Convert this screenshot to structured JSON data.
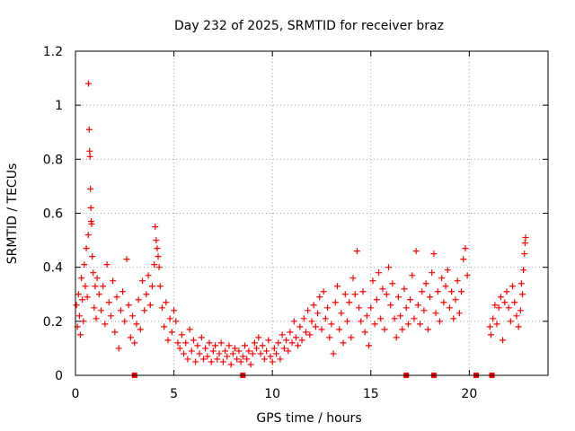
{
  "chart_data": {
    "type": "scatter",
    "title": "Day 232 of 2025, SRMTID for receiver braz",
    "xlabel": "GPS time / hours",
    "ylabel": "SRMTID / TECUs",
    "xlim": [
      0,
      24
    ],
    "ylim": [
      0,
      1.2
    ],
    "x_ticks": [
      0,
      5,
      10,
      15,
      20
    ],
    "x_tick_labels": [
      "0",
      "5",
      "10",
      "15",
      "20"
    ],
    "y_ticks": [
      0,
      0.2,
      0.4,
      0.6,
      0.8,
      1.0,
      1.2
    ],
    "y_tick_labels": [
      "0",
      "0.2",
      "0.4",
      "0.6",
      "0.8",
      "1",
      "1.2"
    ],
    "grid": true,
    "marker": "plus",
    "color": "#ff0000",
    "series": [
      {
        "name": "SRMTID",
        "points": [
          [
            0.05,
            0.26
          ],
          [
            0.1,
            0.18
          ],
          [
            0.15,
            0.3
          ],
          [
            0.2,
            0.22
          ],
          [
            0.25,
            0.15
          ],
          [
            0.3,
            0.36
          ],
          [
            0.35,
            0.28
          ],
          [
            0.4,
            0.2
          ],
          [
            0.45,
            0.41
          ],
          [
            0.5,
            0.33
          ],
          [
            0.55,
            0.47
          ],
          [
            0.6,
            0.29
          ],
          [
            0.65,
            0.52
          ],
          [
            0.66,
            1.08
          ],
          [
            0.7,
            0.91
          ],
          [
            0.72,
            0.83
          ],
          [
            0.74,
            0.81
          ],
          [
            0.76,
            0.69
          ],
          [
            0.78,
            0.62
          ],
          [
            0.8,
            0.57
          ],
          [
            0.82,
            0.56
          ],
          [
            0.85,
            0.44
          ],
          [
            0.9,
            0.38
          ],
          [
            0.95,
            0.25
          ],
          [
            1.0,
            0.33
          ],
          [
            1.05,
            0.21
          ],
          [
            1.1,
            0.36
          ],
          [
            1.2,
            0.3
          ],
          [
            1.3,
            0.24
          ],
          [
            1.4,
            0.33
          ],
          [
            1.5,
            0.19
          ],
          [
            1.6,
            0.41
          ],
          [
            1.7,
            0.27
          ],
          [
            1.8,
            0.22
          ],
          [
            1.9,
            0.35
          ],
          [
            2.0,
            0.16
          ],
          [
            2.1,
            0.29
          ],
          [
            2.2,
            0.1
          ],
          [
            2.3,
            0.24
          ],
          [
            2.4,
            0.31
          ],
          [
            2.5,
            0.2
          ],
          [
            2.6,
            0.43
          ],
          [
            2.7,
            0.26
          ],
          [
            2.8,
            0.14
          ],
          [
            2.9,
            0.22
          ],
          [
            3.0,
            0.12
          ],
          [
            3.1,
            0.19
          ],
          [
            3.2,
            0.28
          ],
          [
            3.3,
            0.17
          ],
          [
            3.4,
            0.35
          ],
          [
            3.5,
            0.24
          ],
          [
            3.6,
            0.3
          ],
          [
            3.7,
            0.37
          ],
          [
            3.8,
            0.26
          ],
          [
            3.9,
            0.33
          ],
          [
            4.0,
            0.41
          ],
          [
            4.05,
            0.55
          ],
          [
            4.1,
            0.5
          ],
          [
            4.15,
            0.47
          ],
          [
            4.2,
            0.44
          ],
          [
            4.25,
            0.4
          ],
          [
            4.3,
            0.33
          ],
          [
            4.4,
            0.25
          ],
          [
            4.5,
            0.18
          ],
          [
            4.6,
            0.27
          ],
          [
            4.7,
            0.13
          ],
          [
            4.8,
            0.21
          ],
          [
            4.9,
            0.16
          ],
          [
            5.0,
            0.24
          ],
          [
            5.1,
            0.2
          ],
          [
            5.2,
            0.12
          ],
          [
            5.3,
            0.1
          ],
          [
            5.4,
            0.15
          ],
          [
            5.5,
            0.08
          ],
          [
            5.6,
            0.12
          ],
          [
            5.7,
            0.06
          ],
          [
            5.8,
            0.17
          ],
          [
            5.9,
            0.09
          ],
          [
            6.0,
            0.13
          ],
          [
            6.1,
            0.05
          ],
          [
            6.2,
            0.11
          ],
          [
            6.3,
            0.08
          ],
          [
            6.4,
            0.14
          ],
          [
            6.5,
            0.06
          ],
          [
            6.6,
            0.1
          ],
          [
            6.7,
            0.07
          ],
          [
            6.8,
            0.12
          ],
          [
            6.9,
            0.05
          ],
          [
            7.0,
            0.09
          ],
          [
            7.1,
            0.11
          ],
          [
            7.2,
            0.06
          ],
          [
            7.3,
            0.08
          ],
          [
            7.4,
            0.12
          ],
          [
            7.5,
            0.05
          ],
          [
            7.6,
            0.09
          ],
          [
            7.7,
            0.07
          ],
          [
            7.8,
            0.11
          ],
          [
            7.9,
            0.04
          ],
          [
            8.0,
            0.08
          ],
          [
            8.1,
            0.1
          ],
          [
            8.2,
            0.06
          ],
          [
            8.3,
            0.09
          ],
          [
            8.4,
            0.05
          ],
          [
            8.5,
            0.07
          ],
          [
            8.6,
            0.11
          ],
          [
            8.7,
            0.06
          ],
          [
            8.8,
            0.09
          ],
          [
            8.9,
            0.04
          ],
          [
            9.0,
            0.08
          ],
          [
            9.1,
            0.12
          ],
          [
            9.2,
            0.1
          ],
          [
            9.3,
            0.14
          ],
          [
            9.4,
            0.08
          ],
          [
            9.5,
            0.11
          ],
          [
            9.6,
            0.06
          ],
          [
            9.7,
            0.09
          ],
          [
            9.8,
            0.13
          ],
          [
            9.9,
            0.07
          ],
          [
            10.0,
            0.05
          ],
          [
            10.1,
            0.1
          ],
          [
            10.2,
            0.08
          ],
          [
            10.3,
            0.12
          ],
          [
            10.4,
            0.06
          ],
          [
            10.5,
            0.15
          ],
          [
            10.6,
            0.1
          ],
          [
            10.7,
            0.13
          ],
          [
            10.8,
            0.09
          ],
          [
            10.9,
            0.16
          ],
          [
            11.0,
            0.12
          ],
          [
            11.1,
            0.2
          ],
          [
            11.2,
            0.14
          ],
          [
            11.3,
            0.11
          ],
          [
            11.4,
            0.18
          ],
          [
            11.5,
            0.13
          ],
          [
            11.6,
            0.21
          ],
          [
            11.7,
            0.16
          ],
          [
            11.8,
            0.24
          ],
          [
            11.9,
            0.15
          ],
          [
            12.0,
            0.2
          ],
          [
            12.1,
            0.26
          ],
          [
            12.2,
            0.18
          ],
          [
            12.3,
            0.23
          ],
          [
            12.4,
            0.29
          ],
          [
            12.5,
            0.17
          ],
          [
            12.6,
            0.31
          ],
          [
            12.7,
            0.21
          ],
          [
            12.8,
            0.25
          ],
          [
            12.9,
            0.14
          ],
          [
            13.0,
            0.19
          ],
          [
            13.1,
            0.08
          ],
          [
            13.2,
            0.27
          ],
          [
            13.3,
            0.33
          ],
          [
            13.4,
            0.17
          ],
          [
            13.5,
            0.23
          ],
          [
            13.6,
            0.12
          ],
          [
            13.7,
            0.3
          ],
          [
            13.8,
            0.2
          ],
          [
            13.9,
            0.27
          ],
          [
            14.0,
            0.14
          ],
          [
            14.1,
            0.36
          ],
          [
            14.2,
            0.3
          ],
          [
            14.3,
            0.46
          ],
          [
            14.4,
            0.25
          ],
          [
            14.5,
            0.2
          ],
          [
            14.6,
            0.31
          ],
          [
            14.7,
            0.16
          ],
          [
            14.8,
            0.22
          ],
          [
            14.9,
            0.11
          ],
          [
            15.0,
            0.25
          ],
          [
            15.1,
            0.35
          ],
          [
            15.2,
            0.19
          ],
          [
            15.3,
            0.28
          ],
          [
            15.4,
            0.38
          ],
          [
            15.5,
            0.21
          ],
          [
            15.6,
            0.32
          ],
          [
            15.7,
            0.17
          ],
          [
            15.8,
            0.3
          ],
          [
            15.9,
            0.4
          ],
          [
            16.0,
            0.26
          ],
          [
            16.1,
            0.34
          ],
          [
            16.2,
            0.21
          ],
          [
            16.3,
            0.14
          ],
          [
            16.4,
            0.29
          ],
          [
            16.5,
            0.22
          ],
          [
            16.6,
            0.17
          ],
          [
            16.7,
            0.32
          ],
          [
            16.8,
            0.25
          ],
          [
            16.9,
            0.19
          ],
          [
            17.0,
            0.28
          ],
          [
            17.1,
            0.37
          ],
          [
            17.2,
            0.21
          ],
          [
            17.3,
            0.46
          ],
          [
            17.4,
            0.26
          ],
          [
            17.5,
            0.19
          ],
          [
            17.6,
            0.31
          ],
          [
            17.7,
            0.24
          ],
          [
            17.8,
            0.34
          ],
          [
            17.9,
            0.17
          ],
          [
            18.0,
            0.29
          ],
          [
            18.1,
            0.38
          ],
          [
            18.2,
            0.45
          ],
          [
            18.3,
            0.23
          ],
          [
            18.4,
            0.31
          ],
          [
            18.5,
            0.2
          ],
          [
            18.6,
            0.36
          ],
          [
            18.7,
            0.27
          ],
          [
            18.8,
            0.33
          ],
          [
            18.9,
            0.39
          ],
          [
            19.0,
            0.25
          ],
          [
            19.1,
            0.31
          ],
          [
            19.2,
            0.21
          ],
          [
            19.3,
            0.28
          ],
          [
            19.4,
            0.35
          ],
          [
            19.5,
            0.23
          ],
          [
            19.6,
            0.31
          ],
          [
            19.7,
            0.43
          ],
          [
            19.8,
            0.47
          ],
          [
            19.9,
            0.37
          ],
          [
            21.05,
            0.18
          ],
          [
            21.1,
            0.15
          ],
          [
            21.2,
            0.21
          ],
          [
            21.3,
            0.26
          ],
          [
            21.4,
            0.19
          ],
          [
            21.5,
            0.25
          ],
          [
            21.6,
            0.29
          ],
          [
            21.7,
            0.13
          ],
          [
            21.8,
            0.27
          ],
          [
            21.9,
            0.31
          ],
          [
            22.0,
            0.25
          ],
          [
            22.1,
            0.2
          ],
          [
            22.2,
            0.33
          ],
          [
            22.3,
            0.27
          ],
          [
            22.4,
            0.22
          ],
          [
            22.5,
            0.18
          ],
          [
            22.6,
            0.24
          ],
          [
            22.65,
            0.34
          ],
          [
            22.7,
            0.3
          ],
          [
            22.75,
            0.39
          ],
          [
            22.8,
            0.45
          ],
          [
            22.83,
            0.49
          ],
          [
            22.86,
            0.51
          ]
        ]
      }
    ],
    "rug_x": [
      3.0,
      8.5,
      16.8,
      18.2,
      20.35,
      21.15
    ]
  }
}
